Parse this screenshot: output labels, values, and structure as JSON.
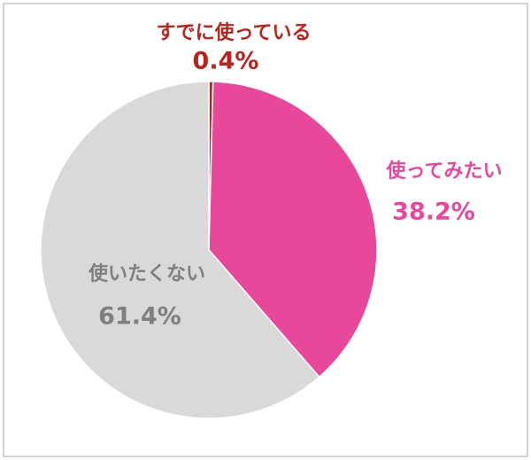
{
  "chart_data": {
    "type": "pie",
    "categories": [
      "すでに使っている",
      "使ってみたい",
      "使いたくない"
    ],
    "values": [
      0.4,
      38.2,
      61.4
    ],
    "value_labels": [
      "0.4%",
      "38.2%",
      "61.4%"
    ],
    "colors": [
      "#b5261e",
      "#e8489a",
      "#d9d9d9"
    ],
    "label_colors": [
      "#b5261e",
      "#e8489a",
      "#7f7f7f"
    ]
  }
}
